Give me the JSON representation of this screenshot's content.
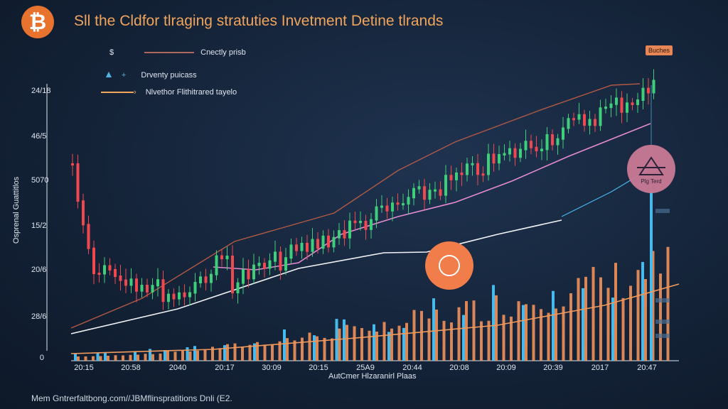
{
  "header": {
    "logo_glyph": "₿",
    "logo_color": "#e8732f",
    "title": "Sll the Cldfor tlraging stratuties Invetment Detine tlrands"
  },
  "legend": {
    "items": [
      {
        "label": "Cnectly prisb",
        "color": "#e8a48a",
        "icon": "coin-icon"
      },
      {
        "label": "Drventy puicass",
        "color": "#4fb3e0",
        "icon": "triangle-up-icon"
      },
      {
        "label": "Nlvethor Flithitrared tayelo",
        "color": "#f0a45c",
        "icon": "arrow-right-icon"
      }
    ]
  },
  "badge": {
    "label": "Buches"
  },
  "markers": {
    "circle_right_label": "Plg Terd",
    "circle_right_icon": "pyramid-icon",
    "circle_center_icon": "coin-bag-icon"
  },
  "chart_data": {
    "type": "candlestick",
    "ylabel": "Osprenal Guattitlos",
    "xlabel": "AutCmer Hlzaranirl Plaas",
    "y_ticks": [
      "24/18",
      "46/5",
      "5070",
      "15/2",
      "20/6",
      "28/6",
      "0"
    ],
    "x_ticks": [
      "20:15",
      "20:58",
      "2040",
      "20:17",
      "30:09",
      "20:15",
      "25A9",
      "20:44",
      "20:08",
      "20:09",
      "20:39",
      "2017",
      "20:47"
    ],
    "colors": {
      "up": "#3fcf7a",
      "down": "#f0484f",
      "pink": "#e58ad0",
      "white": "#f2f4f8",
      "orange": "#f29a5c",
      "bar_blue": "#47b9ea",
      "bar_orange": "#f2915a",
      "brown": "#b35a44"
    }
  },
  "footer": {
    "text": "Mem Gntrerfaltbong.com//JBMflinspratitions Dnli (E2."
  }
}
